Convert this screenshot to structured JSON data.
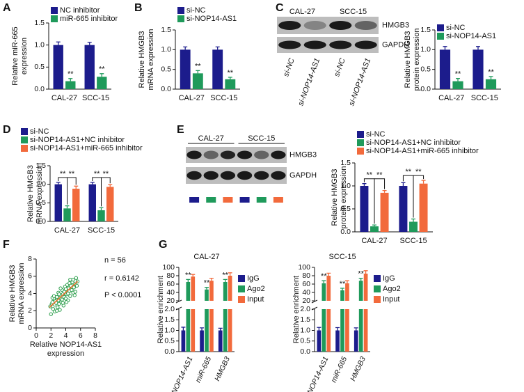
{
  "chart_data": [
    {
      "type": "bar",
      "panel": "A",
      "categories": [
        "CAL-27",
        "SCC-15"
      ],
      "series": [
        {
          "name": "NC inhibitor",
          "color": "#1c1c8c",
          "values": [
            1.0,
            1.0
          ],
          "errors": [
            0.07,
            0.06
          ]
        },
        {
          "name": "miR-665 inhibitor",
          "color": "#1f9a5b",
          "values": [
            0.18,
            0.28
          ],
          "errors": [
            0.06,
            0.07
          ]
        }
      ],
      "y_label": [
        "Relative miR-665",
        "expression"
      ],
      "ylim": [
        0,
        1.5
      ],
      "yticks": [
        {
          "value": 0,
          "label": "0.0"
        },
        0.5,
        {
          "value": 1,
          "label": "1.0"
        },
        1.5
      ],
      "annotations": [
        "**",
        "**"
      ]
    },
    {
      "type": "bar",
      "panel": "B",
      "categories": [
        "CAL-27",
        "SCC-15"
      ],
      "series": [
        {
          "name": "si-NC",
          "color": "#1c1c8c",
          "values": [
            1.0,
            1.0
          ],
          "errors": [
            0.07,
            0.07
          ]
        },
        {
          "name": "si-NOP14-AS1",
          "color": "#1f9a5b",
          "values": [
            0.4,
            0.25
          ],
          "errors": [
            0.07,
            0.05
          ]
        }
      ],
      "y_label": [
        "Relative HMGB3",
        "mRNA expression"
      ],
      "ylim": [
        0,
        1.5
      ],
      "yticks": [
        {
          "value": 0,
          "label": "0.0"
        },
        0.5,
        {
          "value": 1,
          "label": "1.0"
        },
        1.5
      ],
      "annotations": [
        "**",
        "**"
      ]
    },
    {
      "type": "bar",
      "panel": "C",
      "categories": [
        "CAL-27",
        "SCC-15"
      ],
      "blot": {
        "groups": [
          "CAL-27",
          "SCC-15"
        ],
        "rows": [
          "HMGB3",
          "GAPDH"
        ],
        "lanes": [
          "si-NC",
          "si-NOP14-AS1",
          "si-NC",
          "si-NOP14-AS1"
        ]
      },
      "series": [
        {
          "name": "si-NC",
          "color": "#1c1c8c",
          "values": [
            1.0,
            1.0
          ],
          "errors": [
            0.08,
            0.08
          ]
        },
        {
          "name": "si-NOP14-AS1",
          "color": "#1f9a5b",
          "values": [
            0.2,
            0.25
          ],
          "errors": [
            0.07,
            0.07
          ]
        }
      ],
      "y_label": [
        "Relative HMGB3",
        "protein expression"
      ],
      "ylim": [
        0,
        1.5
      ],
      "yticks": [
        {
          "value": 0,
          "label": "0.0"
        },
        0.5,
        {
          "value": 1,
          "label": "1.0"
        },
        1.5
      ],
      "annotations": [
        "**",
        "**"
      ]
    },
    {
      "type": "bar",
      "panel": "D",
      "categories": [
        "CAL-27",
        "SCC-15"
      ],
      "series": [
        {
          "name": "si-NC",
          "color": "#1c1c8c",
          "values": [
            1.0,
            1.0
          ],
          "errors": [
            0.05,
            0.05
          ]
        },
        {
          "name": "si-NOP14-AS1+NC inhibitor",
          "color": "#1f9a5b",
          "values": [
            0.35,
            0.3
          ],
          "errors": [
            0.07,
            0.07
          ]
        },
        {
          "name": "si-NOP14-AS1+miR-665 inhibitor",
          "color": "#f26a3c",
          "values": [
            0.88,
            0.93
          ],
          "errors": [
            0.07,
            0.06
          ]
        }
      ],
      "y_label": [
        "Relative HMGB3",
        "mRNA expression"
      ],
      "ylim": [
        0,
        1.5
      ],
      "yticks": [
        {
          "value": 0,
          "label": "0.0"
        },
        0.5,
        {
          "value": 1,
          "label": "1.0"
        },
        1.5
      ],
      "annotations": [
        "**",
        "**",
        "**",
        "**"
      ]
    },
    {
      "type": "bar",
      "panel": "E",
      "categories": [
        "CAL-27",
        "SCC-15"
      ],
      "blot": {
        "groups": [
          "CAL-27",
          "SCC-15"
        ],
        "rows": [
          "HMGB3",
          "GAPDH"
        ]
      },
      "series": [
        {
          "name": "si-NC",
          "color": "#1c1c8c",
          "values": [
            1.0,
            1.0
          ],
          "errors": [
            0.05,
            0.07
          ]
        },
        {
          "name": "si-NOP14-AS1+NC inhibitor",
          "color": "#1f9a5b",
          "values": [
            0.12,
            0.22
          ],
          "errors": [
            0.03,
            0.06
          ]
        },
        {
          "name": "si-NOP14-AS1+miR-665 inhibitor",
          "color": "#f26a3c",
          "values": [
            0.85,
            1.05
          ],
          "errors": [
            0.05,
            0.07
          ]
        }
      ],
      "y_label": [
        "Relative HMGB3",
        "protein expression"
      ],
      "ylim": [
        0,
        1.5
      ],
      "yticks": [
        {
          "value": 0,
          "label": "0.0"
        },
        0.5,
        {
          "value": 1,
          "label": "1.0"
        },
        1.5
      ],
      "annotations": [
        "**",
        "**",
        "**",
        "**"
      ]
    },
    {
      "type": "scatter",
      "panel": "F",
      "color": "#2a9d4a",
      "x": [
        1.9,
        2.0,
        2.1,
        2.2,
        2.3,
        2.4,
        2.5,
        2.5,
        2.6,
        2.7,
        2.8,
        2.9,
        3.0,
        3.0,
        3.1,
        3.2,
        3.2,
        3.3,
        3.4,
        3.5,
        3.5,
        3.6,
        3.7,
        3.8,
        3.8,
        3.9,
        4.0,
        4.0,
        4.1,
        4.2,
        4.3,
        4.3,
        4.4,
        4.5,
        4.5,
        4.6,
        4.7,
        4.8,
        4.9,
        5.0,
        5.0,
        5.1,
        5.2,
        5.3,
        5.4,
        5.5,
        5.6,
        2.2,
        2.8,
        3.3,
        3.6,
        4.1,
        4.6,
        5.2,
        3.1,
        2.4
      ],
      "y": [
        2.5,
        1.6,
        2.8,
        3.0,
        2.2,
        3.4,
        2.7,
        1.9,
        3.1,
        2.9,
        3.6,
        2.4,
        3.2,
        4.1,
        2.8,
        3.5,
        2.1,
        3.8,
        3.0,
        4.4,
        3.3,
        3.9,
        2.6,
        4.2,
        3.6,
        4.8,
        3.4,
        4.5,
        3.9,
        5.0,
        4.0,
        3.2,
        4.6,
        4.3,
        5.2,
        3.7,
        4.9,
        4.4,
        5.3,
        4.1,
        5.6,
        4.7,
        5.1,
        4.2,
        5.8,
        4.9,
        5.4,
        3.5,
        2.0,
        4.6,
        2.9,
        3.0,
        5.6,
        3.8,
        3.9,
        3.7
      ],
      "fit": {
        "color": "#e8702a",
        "x": [
          1.8,
          5.6
        ],
        "y": [
          2.4,
          5.4
        ]
      },
      "x_label": [
        "Relative NOP14-AS1",
        "expression"
      ],
      "y_label": [
        "Relative HMGB3",
        "mRNA expression"
      ],
      "xlim": [
        0,
        8
      ],
      "xticks": [
        0,
        2,
        4,
        6,
        8
      ],
      "ylim": [
        0,
        8
      ],
      "yticks": [
        0,
        2,
        4,
        6,
        8
      ],
      "annotations": [
        "n = 56",
        "r = 0.6142",
        "P < 0.0001"
      ]
    },
    {
      "type": "bar",
      "panel": "G",
      "title": "CAL-27",
      "categories": [
        "NOP14-AS1",
        "miR-665",
        "HMGB3"
      ],
      "series": [
        {
          "name": "IgG",
          "color": "#1c1c8c",
          "values": [
            1,
            1,
            1
          ],
          "errors": [
            0.15,
            0.12,
            0.1
          ]
        },
        {
          "name": "Ago2",
          "color": "#1f9a5b",
          "values": [
            65,
            47,
            65
          ],
          "errors": [
            6,
            5,
            6
          ]
        },
        {
          "name": "Input",
          "color": "#f26a3c",
          "values": [
            78,
            68,
            80
          ],
          "errors": [
            5,
            6,
            7
          ]
        }
      ],
      "y_label": [
        "Relative enrichment"
      ],
      "ylim": [
        0,
        100
      ],
      "y_break": [
        2,
        20
      ],
      "yticks": [
        {
          "value": 0,
          "label": "0.0"
        },
        0.5,
        {
          "value": 1,
          "label": "1.0"
        },
        1.5,
        {
          "value": 2,
          "label": "2.0"
        },
        20,
        40,
        60,
        80,
        100
      ],
      "annotations": [
        "**",
        "**",
        "**"
      ]
    },
    {
      "type": "bar",
      "title": "SCC-15",
      "categories": [
        "NOP14-AS1",
        "miR-665",
        "HMGB3"
      ],
      "series": [
        {
          "name": "IgG",
          "color": "#1c1c8c",
          "values": [
            1,
            1,
            1
          ],
          "errors": [
            0.14,
            0.13,
            0.12
          ]
        },
        {
          "name": "Ago2",
          "color": "#1f9a5b",
          "values": [
            62,
            45,
            68
          ],
          "errors": [
            6,
            5,
            6
          ]
        },
        {
          "name": "Input",
          "color": "#f26a3c",
          "values": [
            80,
            62,
            85
          ],
          "errors": [
            6,
            6,
            7
          ]
        }
      ],
      "y_label": [
        "Relative enrichment"
      ],
      "ylim": [
        0,
        100
      ],
      "y_break": [
        2,
        20
      ],
      "yticks": [
        {
          "value": 0,
          "label": "0.0"
        },
        0.5,
        {
          "value": 1,
          "label": "1.0"
        },
        1.5,
        {
          "value": 2,
          "label": "2.0"
        },
        20,
        40,
        60,
        80,
        100
      ],
      "annotations": [
        "**",
        "**",
        "**"
      ]
    }
  ]
}
